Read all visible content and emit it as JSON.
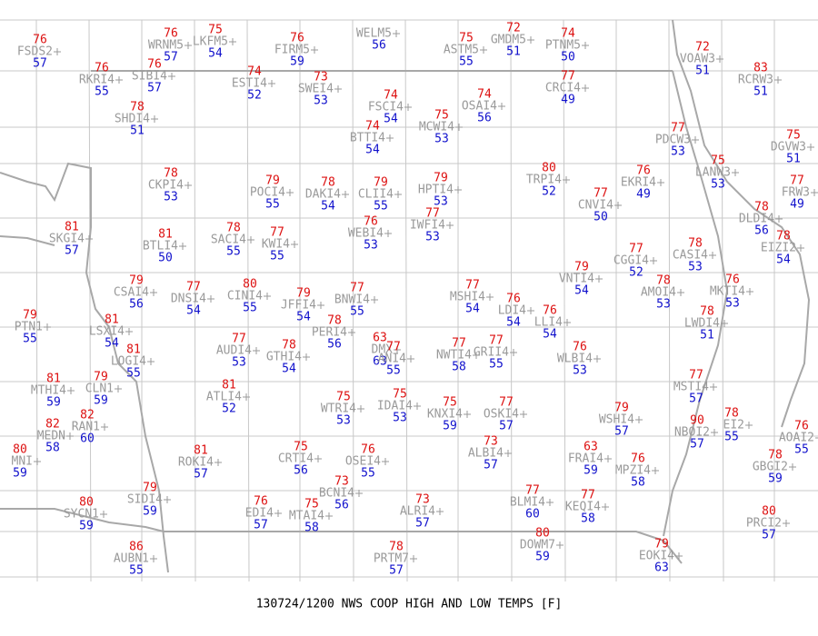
{
  "title": "130724/1200 NWS COOP HIGH AND LOW TEMPS [F]",
  "stations": [
    {
      "id": "FSDS2",
      "high": 76,
      "low": 57
    },
    {
      "id": "WRNM5",
      "high": 76,
      "low": 57
    },
    {
      "id": "LKFM5",
      "high": 75,
      "low": 54
    },
    {
      "id": "FIRM5",
      "high": 76,
      "low": 59
    },
    {
      "id": "WELM5",
      "low": 56
    },
    {
      "id": "ASTM5",
      "high": 75,
      "low": 55
    },
    {
      "id": "GMDM5",
      "high": 72,
      "low": 51
    },
    {
      "id": "PTNM5",
      "high": 74,
      "low": 50
    },
    {
      "id": "VOAW3",
      "high": 72,
      "low": 51
    },
    {
      "id": "RKRI4",
      "high": 76,
      "low": 55
    },
    {
      "id": "SIBI4",
      "high": 76,
      "low": 57
    },
    {
      "id": "ESTI4",
      "high": 74,
      "low": 52
    },
    {
      "id": "SWEI4",
      "high": 73,
      "low": 53
    },
    {
      "id": "CRCI4",
      "high": 77,
      "low": 49
    },
    {
      "id": "RCRW3",
      "high": 83,
      "low": 51
    },
    {
      "id": "SHDI4",
      "high": 78,
      "low": 51
    },
    {
      "id": "FSCI4",
      "high": 74,
      "low": 54
    },
    {
      "id": "OSAI4",
      "high": 74,
      "low": 56
    },
    {
      "id": "MCWI4",
      "high": 75,
      "low": 53
    },
    {
      "id": "BTTI4",
      "high": 74,
      "low": 54
    },
    {
      "id": "PDCW3",
      "high": 77,
      "low": 53
    },
    {
      "id": "DGVW3",
      "high": 75,
      "low": 51
    },
    {
      "id": "LANW3",
      "high": 75,
      "low": 53
    },
    {
      "id": "CKPI4",
      "high": 78,
      "low": 53
    },
    {
      "id": "TRPI4",
      "high": 80,
      "low": 52
    },
    {
      "id": "EKRI4",
      "high": 76,
      "low": 49
    },
    {
      "id": "POCI4",
      "high": 79,
      "low": 55
    },
    {
      "id": "DAKI4",
      "high": 78,
      "low": 54
    },
    {
      "id": "CLII4",
      "high": 79,
      "low": 55
    },
    {
      "id": "HPTI4",
      "high": 79,
      "low": 53
    },
    {
      "id": "CNVI4",
      "high": 77,
      "low": 50
    },
    {
      "id": "FRW3",
      "high": 77,
      "low": 49
    },
    {
      "id": "DLDI4",
      "high": 78,
      "low": 56
    },
    {
      "id": "SKGI4",
      "high": 81,
      "low": 57
    },
    {
      "id": "BTLI4",
      "high": 81,
      "low": 50
    },
    {
      "id": "SACI4",
      "high": 78,
      "low": 55
    },
    {
      "id": "KWI4",
      "high": 77,
      "low": 55
    },
    {
      "id": "WEBI4",
      "high": 76,
      "low": 53
    },
    {
      "id": "IWFI4",
      "high": 77,
      "low": 53
    },
    {
      "id": "CGGI4",
      "high": 77,
      "low": 52
    },
    {
      "id": "CASI4",
      "high": 78,
      "low": 53
    },
    {
      "id": "EIZI2",
      "high": 78,
      "low": 54
    },
    {
      "id": "CSAI4",
      "high": 79,
      "low": 56
    },
    {
      "id": "DNSI4",
      "high": 77,
      "low": 54
    },
    {
      "id": "CINI4",
      "high": 80,
      "low": 55
    },
    {
      "id": "JFFI4",
      "high": 79,
      "low": 54
    },
    {
      "id": "BNWI4",
      "high": 77,
      "low": 55
    },
    {
      "id": "MSHI4",
      "high": 77,
      "low": 54
    },
    {
      "id": "VNTI4",
      "high": 79,
      "low": 54
    },
    {
      "id": "AMOI4",
      "high": 78,
      "low": 53
    },
    {
      "id": "MKTI4",
      "high": 76,
      "low": 53
    },
    {
      "id": "LDI4",
      "high": 76,
      "low": 54
    },
    {
      "id": "LLI4",
      "high": 76,
      "low": 54
    },
    {
      "id": "PTN1",
      "high": 79,
      "low": 55
    },
    {
      "id": "LSXI4",
      "high": 81,
      "low": 54
    },
    {
      "id": "PERI4",
      "high": 78,
      "low": 56
    },
    {
      "id": "LWDI4",
      "high": 78,
      "low": 51
    },
    {
      "id": "AUDI4",
      "high": 77,
      "low": 53
    },
    {
      "id": "GTHI4",
      "high": 78,
      "low": 54
    },
    {
      "id": "DMX",
      "high": 63,
      "low": 63
    },
    {
      "id": "ANI4",
      "high": 77,
      "low": 55
    },
    {
      "id": "NWTI4",
      "high": 77,
      "low": 58
    },
    {
      "id": "GRII4",
      "high": 77,
      "low": 55
    },
    {
      "id": "WLBI4",
      "high": 76,
      "low": 53
    },
    {
      "id": "LOGI4",
      "high": 81,
      "low": 55
    },
    {
      "id": "MTHI4",
      "high": 81,
      "low": 59
    },
    {
      "id": "CLN1",
      "high": 79,
      "low": 59
    },
    {
      "id": "ATLI4",
      "high": 81,
      "low": 52
    },
    {
      "id": "MSTI4",
      "high": 77,
      "low": 57
    },
    {
      "id": "WTRI4",
      "high": 75,
      "low": 53
    },
    {
      "id": "IDAI4",
      "high": 75,
      "low": 53
    },
    {
      "id": "KNXI4",
      "high": 75,
      "low": 59
    },
    {
      "id": "OSKI4",
      "high": 77,
      "low": 57
    },
    {
      "id": "WSHI4",
      "high": 79,
      "low": 57
    },
    {
      "id": "NBOI2",
      "high": 90,
      "low": 57
    },
    {
      "id": "EI2",
      "high": 78,
      "low": 55
    },
    {
      "id": "AOAI2",
      "high": 76,
      "low": 55
    },
    {
      "id": "MEDN",
      "high": 82,
      "low": 58
    },
    {
      "id": "RAN1",
      "high": 82,
      "low": 60
    },
    {
      "id": "MNI",
      "high": 80,
      "low": 59
    },
    {
      "id": "ROKI4",
      "high": 81,
      "low": 57
    },
    {
      "id": "CRTI4",
      "high": 75,
      "low": 56
    },
    {
      "id": "OSEI4",
      "high": 76,
      "low": 55
    },
    {
      "id": "ALBI4",
      "high": 73,
      "low": 57
    },
    {
      "id": "FRAI4",
      "high": 63,
      "low": 59
    },
    {
      "id": "MPZI4",
      "high": 76,
      "low": 58
    },
    {
      "id": "GBGI2",
      "high": 78,
      "low": 59
    },
    {
      "id": "SIDI4",
      "high": 79,
      "low": 59
    },
    {
      "id": "BCNI4",
      "high": 73,
      "low": 56
    },
    {
      "id": "SYCN1",
      "high": 80,
      "low": 59
    },
    {
      "id": "EDI4",
      "high": 76,
      "low": 57
    },
    {
      "id": "MTAI4",
      "high": 75,
      "low": 58
    },
    {
      "id": "ALRI4",
      "high": 73,
      "low": 57
    },
    {
      "id": "BLMI4",
      "high": 77,
      "low": 60
    },
    {
      "id": "KEQI4",
      "high": 77,
      "low": 58
    },
    {
      "id": "PRCI2",
      "high": 80,
      "low": 57
    },
    {
      "id": "AUBN1",
      "high": 86,
      "low": 55
    },
    {
      "id": "PRTM7",
      "high": 78,
      "low": 57
    },
    {
      "id": "DOWM7",
      "high": 80,
      "low": 59
    },
    {
      "id": "EOKI4",
      "high": 79,
      "low": 63
    }
  ]
}
